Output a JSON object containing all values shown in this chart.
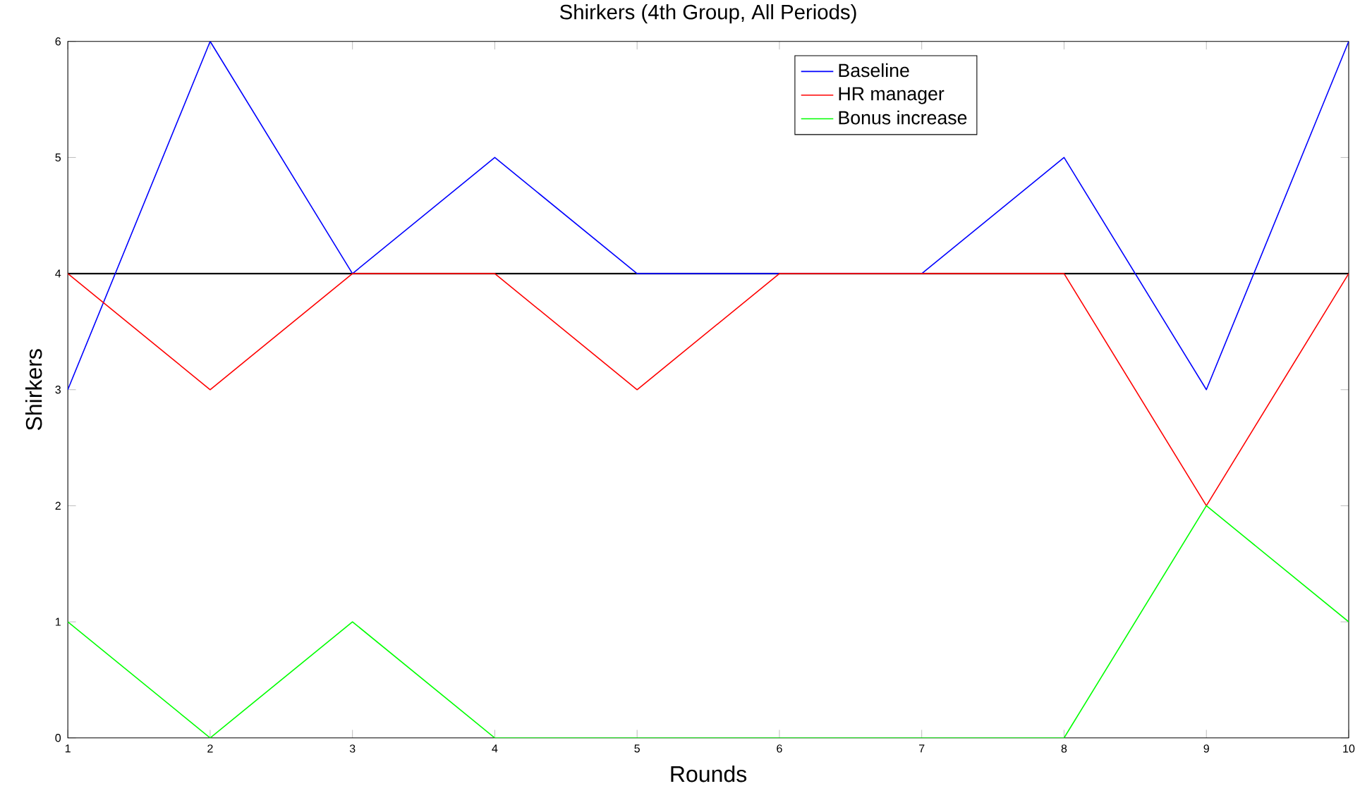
{
  "chart_data": {
    "type": "line",
    "title": "Shirkers (4th Group, All Periods)",
    "xlabel": "Rounds",
    "ylabel": "Shirkers",
    "x": [
      1,
      2,
      3,
      4,
      5,
      6,
      7,
      8,
      9,
      10
    ],
    "series": [
      {
        "name": "Baseline",
        "color": "#0000ff",
        "values": [
          3,
          6,
          4,
          5,
          4,
          4,
          4,
          5,
          3,
          6
        ]
      },
      {
        "name": "HR manager",
        "color": "#ff0000",
        "values": [
          4,
          3,
          4,
          4,
          3,
          4,
          4,
          4,
          2,
          4
        ]
      },
      {
        "name": "Bonus increase",
        "color": "#00ff00",
        "values": [
          1,
          0,
          1,
          0,
          null,
          null,
          null,
          0,
          2,
          1
        ]
      }
    ],
    "ref_lines": [
      {
        "axis": "y",
        "value": 4,
        "color": "#000000"
      }
    ],
    "xlim": [
      1,
      10
    ],
    "ylim": [
      0,
      6
    ],
    "xticks": [
      1,
      2,
      3,
      4,
      5,
      6,
      7,
      8,
      9,
      10
    ],
    "yticks": [
      0,
      1,
      2,
      3,
      4,
      5,
      6
    ],
    "grid": false,
    "legend": "top right",
    "marker": "none",
    "line_style": "solid"
  }
}
